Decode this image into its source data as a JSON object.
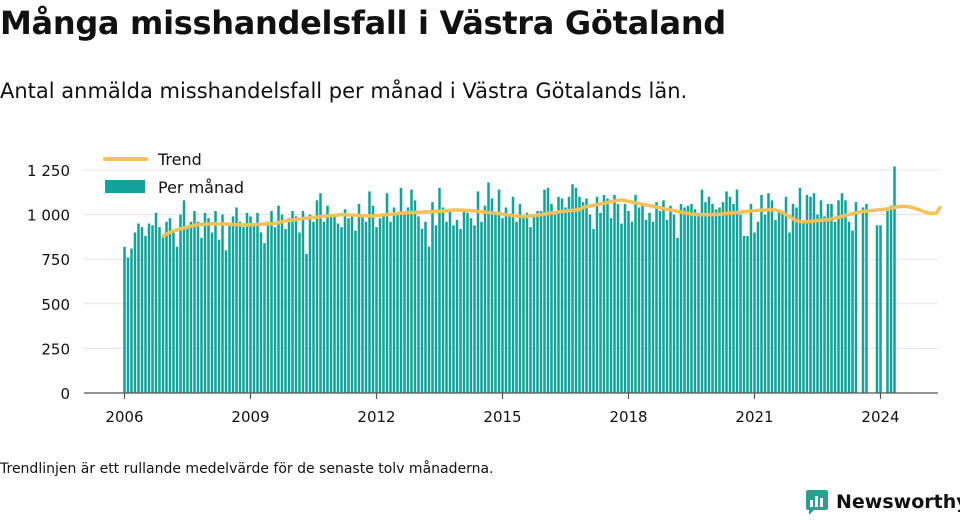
{
  "title": "Många misshandelsfall i Västra Götaland",
  "subtitle": "Antal anmälda misshandelsfall per månad i Västra Götalands län.",
  "footnote": "Trendlinjen är ett rullande medelvärde för de senaste tolv månaderna.",
  "brand": {
    "name": "Newsworthy",
    "icon": "bar-chart-logo-icon"
  },
  "colors": {
    "bars": "#11a39a",
    "trend": "#f5c158",
    "grid": "#e3e3e3",
    "axis": "#555555",
    "text": "#111111",
    "brand": "#2f9e8f"
  },
  "chart_data": {
    "type": "bar",
    "x_unit": "month",
    "x_start": "2006-01",
    "x_ticks": [
      "2006",
      "2009",
      "2012",
      "2015",
      "2018",
      "2021",
      "2024"
    ],
    "x_tick_labels": [
      "2006",
      "2009",
      "2012",
      "2015",
      "2018",
      "2021",
      "2024"
    ],
    "y_ticks": [
      0,
      250,
      500,
      750,
      1000,
      1250
    ],
    "y_tick_labels": [
      "0",
      "250",
      "500",
      "750",
      "1 000",
      "1 250"
    ],
    "ylim": [
      0,
      1300
    ],
    "grid": true,
    "legend_position": "top-left",
    "series": [
      {
        "name": "Per månad",
        "kind": "bar",
        "values": [
          820,
          760,
          810,
          900,
          950,
          930,
          880,
          950,
          940,
          1010,
          930,
          880,
          960,
          980,
          900,
          820,
          1000,
          1080,
          930,
          960,
          1020,
          960,
          870,
          1010,
          980,
          900,
          1020,
          860,
          1000,
          800,
          940,
          990,
          1040,
          960,
          930,
          1010,
          990,
          940,
          1010,
          900,
          840,
          960,
          1020,
          930,
          1050,
          1000,
          920,
          980,
          1020,
          990,
          900,
          1020,
          780,
          1000,
          960,
          1080,
          1120,
          960,
          1050,
          990,
          1000,
          950,
          930,
          1030,
          980,
          1000,
          910,
          1060,
          990,
          960,
          1130,
          1050,
          930,
          980,
          1000,
          1120,
          960,
          1040,
          1000,
          1150,
          1000,
          1040,
          1140,
          1080,
          990,
          920,
          960,
          820,
          1070,
          940,
          1150,
          1040,
          960,
          1030,
          940,
          970,
          920,
          1030,
          1010,
          980,
          940,
          1130,
          960,
          1050,
          1180,
          1090,
          1000,
          1140,
          980,
          1040,
          1000,
          1100,
          960,
          1060,
          990,
          1010,
          930,
          1000,
          1020,
          1020,
          1140,
          1150,
          1060,
          1000,
          1100,
          1090,
          1040,
          1100,
          1170,
          1150,
          1100,
          1070,
          1090,
          1000,
          920,
          1100,
          1010,
          1110,
          1090,
          980,
          1110,
          1060,
          950,
          1060,
          1020,
          960,
          1110,
          1040,
          1060,
          970,
          1010,
          960,
          1070,
          1020,
          1080,
          970,
          1050,
          1000,
          870,
          1060,
          1040,
          1050,
          1060,
          1030,
          1000,
          1140,
          1070,
          1100,
          1060,
          1030,
          1040,
          1070,
          1130,
          1100,
          1060,
          1140,
          1000,
          880,
          880,
          1060,
          900,
          960,
          1110,
          1000,
          1120,
          1080,
          970,
          1030,
          1010,
          1100,
          900,
          1060,
          1040,
          1150,
          960,
          1110,
          1100,
          1120,
          1000,
          1080,
          990,
          1060,
          1060,
          960,
          1080,
          1120,
          1080,
          960,
          910,
          1070,
          null,
          1040,
          1060,
          null,
          null,
          940,
          940,
          null,
          1020,
          1050,
          1270
        ]
      },
      {
        "name": "Trend",
        "kind": "line",
        "start_index": 11,
        "values": [
          880,
          890,
          900,
          910,
          915,
          920,
          925,
          930,
          935,
          940,
          943,
          945,
          946,
          947,
          948,
          948,
          947,
          947,
          948,
          946,
          945,
          944,
          943,
          942,
          942,
          943,
          944,
          945,
          946,
          947,
          948,
          949,
          950,
          955,
          960,
          965,
          968,
          970,
          972,
          975,
          978,
          980,
          982,
          984,
          986,
          988,
          990,
          992,
          994,
          996,
          998,
          1000,
          999,
          998,
          997,
          996,
          995,
          994,
          993,
          992,
          992,
          994,
          996,
          998,
          1000,
          1002,
          1004,
          1006,
          1008,
          1010,
          1011,
          1012,
          1012,
          1013,
          1014,
          1015,
          1016,
          1017,
          1018,
          1019,
          1020,
          1022,
          1024,
          1026,
          1026,
          1025,
          1024,
          1023,
          1022,
          1020,
          1018,
          1016,
          1014,
          1012,
          1010,
          1008,
          1006,
          1003,
          1000,
          998,
          995,
          992,
          990,
          988,
          990,
          992,
          995,
          998,
          1000,
          1003,
          1006,
          1009,
          1012,
          1015,
          1018,
          1020,
          1022,
          1024,
          1026,
          1028,
          1040,
          1045,
          1048,
          1052,
          1056,
          1060,
          1064,
          1068,
          1072,
          1076,
          1080,
          1082,
          1078,
          1074,
          1070,
          1066,
          1062,
          1058,
          1054,
          1050,
          1046,
          1042,
          1038,
          1034,
          1030,
          1026,
          1022,
          1018,
          1014,
          1010,
          1006,
          1003,
          1001,
          1000,
          1000,
          1000,
          1000,
          1000,
          1001,
          1002,
          1004,
          1006,
          1008,
          1010,
          1012,
          1014,
          1016,
          1018,
          1020,
          1022,
          1024,
          1025,
          1026,
          1027,
          1028,
          1026,
          1020,
          1012,
          1000,
          990,
          976,
          966,
          962,
          960,
          960,
          962,
          964,
          966,
          968,
          970,
          972,
          975,
          980,
          985,
          990,
          995,
          1000,
          1005,
          1010,
          1015,
          1018,
          1020,
          1022,
          1024,
          1026,
          1028,
          1030,
          1032,
          1036,
          1040,
          1044,
          1046,
          1046,
          1044,
          1040,
          1034,
          1028,
          1020,
          1012,
          1008,
          1006,
          1010,
          1040
        ]
      }
    ]
  }
}
